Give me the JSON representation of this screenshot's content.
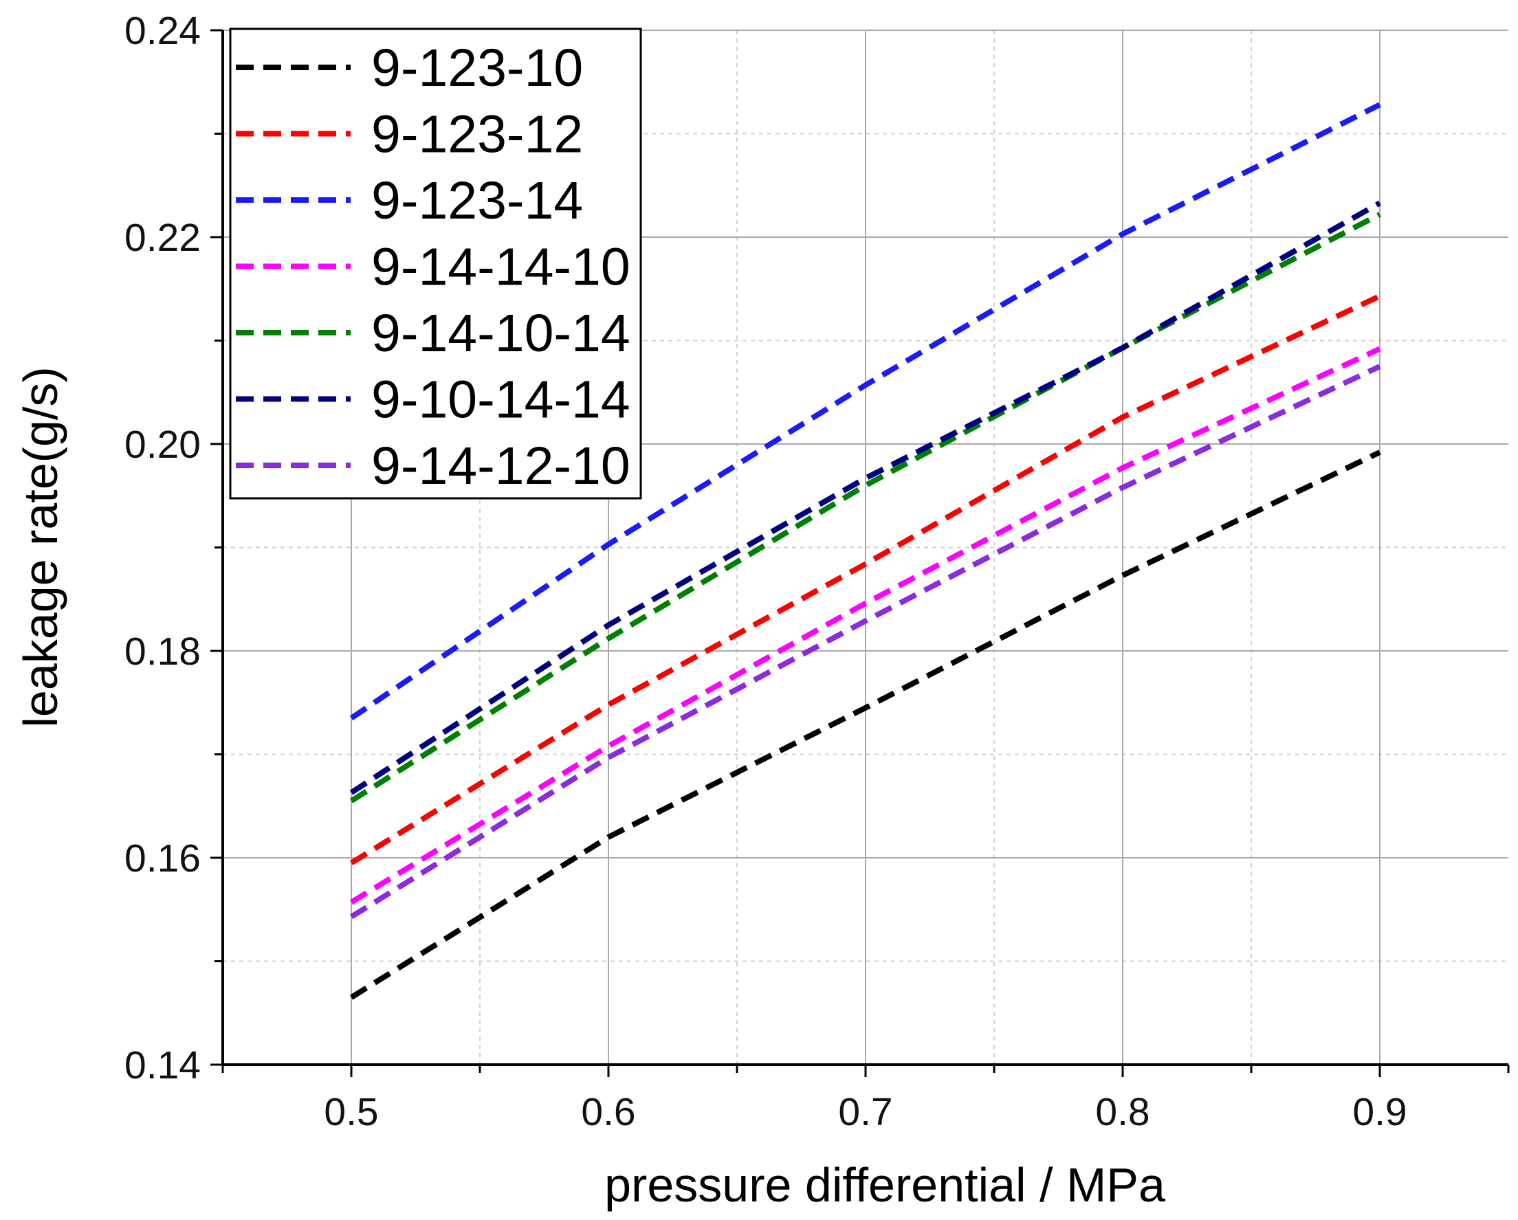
{
  "chart_data": {
    "type": "line",
    "title": "",
    "xlabel": "pressure differential / MPa",
    "ylabel": "leakage rate(g/s)",
    "xlim": [
      0.45,
      0.95
    ],
    "ylim": [
      0.14,
      0.24
    ],
    "x_ticks": [
      "0.5",
      "0.6",
      "0.7",
      "0.8",
      "0.9"
    ],
    "y_ticks": [
      "0.14",
      "0.16",
      "0.18",
      "0.20",
      "0.22",
      "0.24"
    ],
    "grid": true,
    "legend_position": "top-left",
    "line_style": "dashed",
    "x": [
      0.5,
      0.6,
      0.7,
      0.8,
      0.9
    ],
    "series": [
      {
        "name": "9-123-10",
        "color": "#000000",
        "values": [
          0.1465,
          0.162,
          0.1745,
          0.1873,
          0.1992
        ]
      },
      {
        "name": "9-123-12",
        "color": "#ff0000",
        "values": [
          0.1595,
          0.1748,
          0.1884,
          0.2026,
          0.2143
        ]
      },
      {
        "name": "9-123-14",
        "color": "#1a1aff",
        "values": [
          0.1735,
          0.1903,
          0.2057,
          0.2203,
          0.2328
        ]
      },
      {
        "name": "9-14-14-10",
        "color": "#ff00ff",
        "values": [
          0.1557,
          0.1708,
          0.1846,
          0.1977,
          0.2092
        ]
      },
      {
        "name": "9-14-10-14",
        "color": "#008000",
        "values": [
          0.1655,
          0.1812,
          0.196,
          0.2093,
          0.2222
        ]
      },
      {
        "name": "9-10-14-14",
        "color": "#000080",
        "values": [
          0.1663,
          0.1825,
          0.1967,
          0.2093,
          0.2233
        ]
      },
      {
        "name": "9-14-12-10",
        "color": "#8a2be2",
        "values": [
          0.1543,
          0.1697,
          0.1829,
          0.1958,
          0.2075
        ]
      }
    ]
  }
}
